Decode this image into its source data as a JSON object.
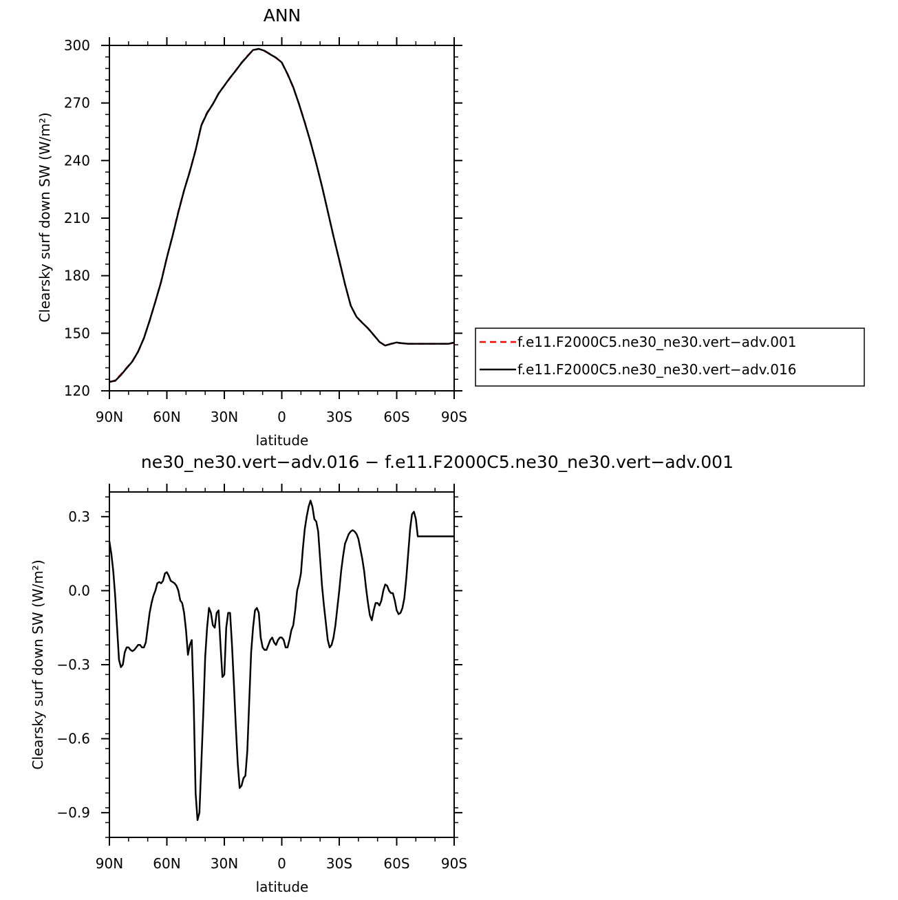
{
  "chart_data": [
    {
      "type": "line",
      "title": "ANN",
      "xlabel": "latitude",
      "ylabel": "Clearsky surf down SW (W/m²)",
      "xlim": [
        -90,
        90
      ],
      "ylim": [
        120,
        300
      ],
      "x_ticks": [
        -90,
        -60,
        -30,
        0,
        30,
        60,
        90
      ],
      "x_tick_labels": [
        "90N",
        "60N",
        "30N",
        "0",
        "30S",
        "60S",
        "90S"
      ],
      "y_ticks": [
        120,
        150,
        180,
        210,
        240,
        270,
        300
      ],
      "y_tick_labels": [
        "120",
        "150",
        "180",
        "210",
        "240",
        "270",
        "300"
      ],
      "grid": false,
      "legend_position": "right",
      "series": [
        {
          "name": "f.e11.F2000C5.ne30_ne30.vert-adv.001",
          "color": "#ff0000",
          "dash": true,
          "x": [
            -90,
            -87,
            -84,
            -81,
            -78,
            -75,
            -72,
            -69,
            -66,
            -63,
            -60,
            -57,
            -54,
            -51,
            -48,
            -45,
            -42,
            -39,
            -36,
            -33,
            -30,
            -27,
            -24,
            -21,
            -18,
            -15,
            -12,
            -9,
            -6,
            -3,
            0,
            3,
            6,
            9,
            12,
            15,
            18,
            21,
            24,
            27,
            30,
            33,
            36,
            39,
            42,
            45,
            48,
            51,
            54,
            57,
            60,
            63,
            66,
            69,
            72,
            75,
            78,
            81,
            84,
            87,
            90
          ],
          "y": [
            124.5,
            125.5,
            128.5,
            132.0,
            135.5,
            140.5,
            147.5,
            156.5,
            166.5,
            177.0,
            189.5,
            201.0,
            213.5,
            224.5,
            234.5,
            245.5,
            258.5,
            265.0,
            269.5,
            275.0,
            279.0,
            283.0,
            287.0,
            291.0,
            294.5,
            297.5,
            298.2,
            297.0,
            295.5,
            293.5,
            291.0,
            285.0,
            278.0,
            269.5,
            260.0,
            249.5,
            238.5,
            226.5,
            213.5,
            200.5,
            188.0,
            175.5,
            164.5,
            158.5,
            155.5,
            152.5,
            149.0,
            145.5,
            143.5,
            144.5,
            145.0,
            144.8,
            144.5,
            144.5,
            144.5,
            144.5,
            144.5,
            144.5,
            144.5,
            144.5,
            145.0
          ]
        },
        {
          "name": "f.e11.F2000C5.ne30_ne30.vert-adv.016",
          "color": "#000000",
          "dash": false,
          "x": [
            -90,
            -87,
            -84,
            -81,
            -78,
            -75,
            -72,
            -69,
            -66,
            -63,
            -60,
            -57,
            -54,
            -51,
            -48,
            -45,
            -42,
            -39,
            -36,
            -33,
            -30,
            -27,
            -24,
            -21,
            -18,
            -15,
            -12,
            -9,
            -6,
            -3,
            0,
            3,
            6,
            9,
            12,
            15,
            18,
            21,
            24,
            27,
            30,
            33,
            36,
            39,
            42,
            45,
            48,
            51,
            54,
            57,
            60,
            63,
            66,
            69,
            72,
            75,
            78,
            81,
            84,
            87,
            90
          ],
          "y": [
            124.7,
            125.2,
            128.2,
            131.8,
            135.3,
            140.5,
            147.4,
            156.6,
            166.5,
            176.8,
            189.4,
            200.8,
            213.1,
            224.5,
            234.3,
            245.4,
            258.3,
            264.7,
            269.4,
            274.9,
            279.1,
            283.2,
            286.9,
            290.9,
            294.3,
            297.6,
            298.2,
            297.2,
            295.3,
            293.6,
            291.1,
            285.1,
            278.2,
            269.4,
            259.8,
            249.7,
            238.5,
            226.5,
            213.6,
            200.5,
            188.2,
            175.6,
            164.4,
            158.6,
            155.5,
            152.6,
            149.1,
            145.5,
            143.6,
            144.5,
            145.2,
            144.8,
            144.5,
            144.5,
            144.5,
            144.5,
            144.5,
            144.5,
            144.5,
            144.5,
            145.2
          ]
        }
      ]
    },
    {
      "type": "line",
      "title": "ne30_ne30.vert-adv.016 - f.e11.F2000C5.ne30_ne30.vert-adv.001",
      "xlabel": "latitude",
      "ylabel": "Clearsky surf down SW (W/m²)",
      "xlim": [
        -90,
        90
      ],
      "ylim": [
        -1.0,
        0.4
      ],
      "x_ticks": [
        -90,
        -60,
        -30,
        0,
        30,
        60,
        90
      ],
      "x_tick_labels": [
        "90N",
        "60N",
        "30N",
        "0",
        "30S",
        "60S",
        "90S"
      ],
      "y_ticks": [
        -0.9,
        -0.6,
        -0.3,
        0.0,
        0.3
      ],
      "y_tick_labels": [
        "-0.9",
        "-0.6",
        "-0.3",
        "0.0",
        "0.3"
      ],
      "grid": false,
      "series": [
        {
          "color": "#000000",
          "x": [
            -90,
            -89,
            -88,
            -87,
            -86,
            -85,
            -84,
            -83,
            -82,
            -81,
            -80,
            -79,
            -78,
            -77,
            -76,
            -75,
            -74,
            -73,
            -72,
            -71,
            -70,
            -69,
            -68,
            -67,
            -66,
            -65,
            -64,
            -63,
            -62,
            -61,
            -60,
            -59,
            -58,
            -57,
            -56,
            -55,
            -54,
            -53,
            -52,
            -51,
            -50,
            -49,
            -48,
            -47,
            -46,
            -45,
            -44,
            -43,
            -42,
            -41,
            -40,
            -39,
            -38,
            -37,
            -36,
            -35,
            -34,
            -33,
            -32,
            -31,
            -30,
            -29,
            -28,
            -27,
            -26,
            -25,
            -24,
            -23,
            -22,
            -21,
            -20,
            -19,
            -18,
            -17,
            -16,
            -15,
            -14,
            -13,
            -12,
            -11,
            -10,
            -9,
            -8,
            -7,
            -6,
            -5,
            -4,
            -3,
            -2,
            -1,
            0,
            1,
            2,
            3,
            4,
            5,
            6,
            7,
            8,
            9,
            10,
            11,
            12,
            13,
            14,
            15,
            16,
            17,
            18,
            19,
            20,
            21,
            22,
            23,
            24,
            25,
            26,
            27,
            28,
            29,
            30,
            31,
            32,
            33,
            34,
            35,
            36,
            37,
            38,
            39,
            40,
            41,
            42,
            43,
            44,
            45,
            46,
            47,
            48,
            49,
            50,
            51,
            52,
            53,
            54,
            55,
            56,
            57,
            58,
            59,
            60,
            61,
            62,
            63,
            64,
            65,
            66,
            67,
            68,
            69,
            70,
            71,
            72,
            73,
            74,
            75,
            76,
            77,
            78,
            79,
            80,
            81,
            82,
            83,
            84,
            85,
            86,
            87,
            88,
            89,
            90
          ],
          "y": [
            0.2,
            0.15,
            0.08,
            -0.02,
            -0.15,
            -0.28,
            -0.31,
            -0.3,
            -0.25,
            -0.23,
            -0.23,
            -0.24,
            -0.245,
            -0.24,
            -0.23,
            -0.22,
            -0.22,
            -0.23,
            -0.23,
            -0.21,
            -0.15,
            -0.09,
            -0.05,
            -0.02,
            0.0,
            0.03,
            0.035,
            0.03,
            0.04,
            0.07,
            0.075,
            0.06,
            0.04,
            0.035,
            0.03,
            0.02,
            0.0,
            -0.04,
            -0.05,
            -0.09,
            -0.16,
            -0.26,
            -0.22,
            -0.2,
            -0.45,
            -0.82,
            -0.93,
            -0.9,
            -0.7,
            -0.5,
            -0.27,
            -0.15,
            -0.07,
            -0.09,
            -0.14,
            -0.15,
            -0.09,
            -0.08,
            -0.22,
            -0.35,
            -0.34,
            -0.15,
            -0.09,
            -0.09,
            -0.22,
            -0.38,
            -0.55,
            -0.7,
            -0.8,
            -0.79,
            -0.76,
            -0.75,
            -0.65,
            -0.45,
            -0.25,
            -0.15,
            -0.08,
            -0.07,
            -0.09,
            -0.19,
            -0.23,
            -0.24,
            -0.24,
            -0.22,
            -0.2,
            -0.19,
            -0.21,
            -0.22,
            -0.2,
            -0.19,
            -0.19,
            -0.2,
            -0.23,
            -0.23,
            -0.2,
            -0.16,
            -0.14,
            -0.08,
            0.0,
            0.03,
            0.07,
            0.17,
            0.25,
            0.3,
            0.34,
            0.365,
            0.34,
            0.29,
            0.28,
            0.24,
            0.13,
            0.02,
            -0.06,
            -0.13,
            -0.2,
            -0.23,
            -0.22,
            -0.19,
            -0.14,
            -0.07,
            0.0,
            0.08,
            0.14,
            0.19,
            0.21,
            0.23,
            0.24,
            0.245,
            0.24,
            0.23,
            0.21,
            0.17,
            0.13,
            0.08,
            0.01,
            -0.05,
            -0.1,
            -0.12,
            -0.08,
            -0.05,
            -0.05,
            -0.06,
            -0.04,
            0.0,
            0.025,
            0.02,
            0.0,
            -0.01,
            -0.01,
            -0.04,
            -0.08,
            -0.095,
            -0.09,
            -0.07,
            -0.03,
            0.05,
            0.15,
            0.25,
            0.31,
            0.32,
            0.29,
            0.22,
            0.22,
            0.22,
            0.22,
            0.22,
            0.22,
            0.22,
            0.22,
            0.22,
            0.22,
            0.22,
            0.22,
            0.22,
            0.22,
            0.22,
            0.22,
            0.22,
            0.22,
            0.22,
            0.22
          ]
        }
      ]
    }
  ]
}
